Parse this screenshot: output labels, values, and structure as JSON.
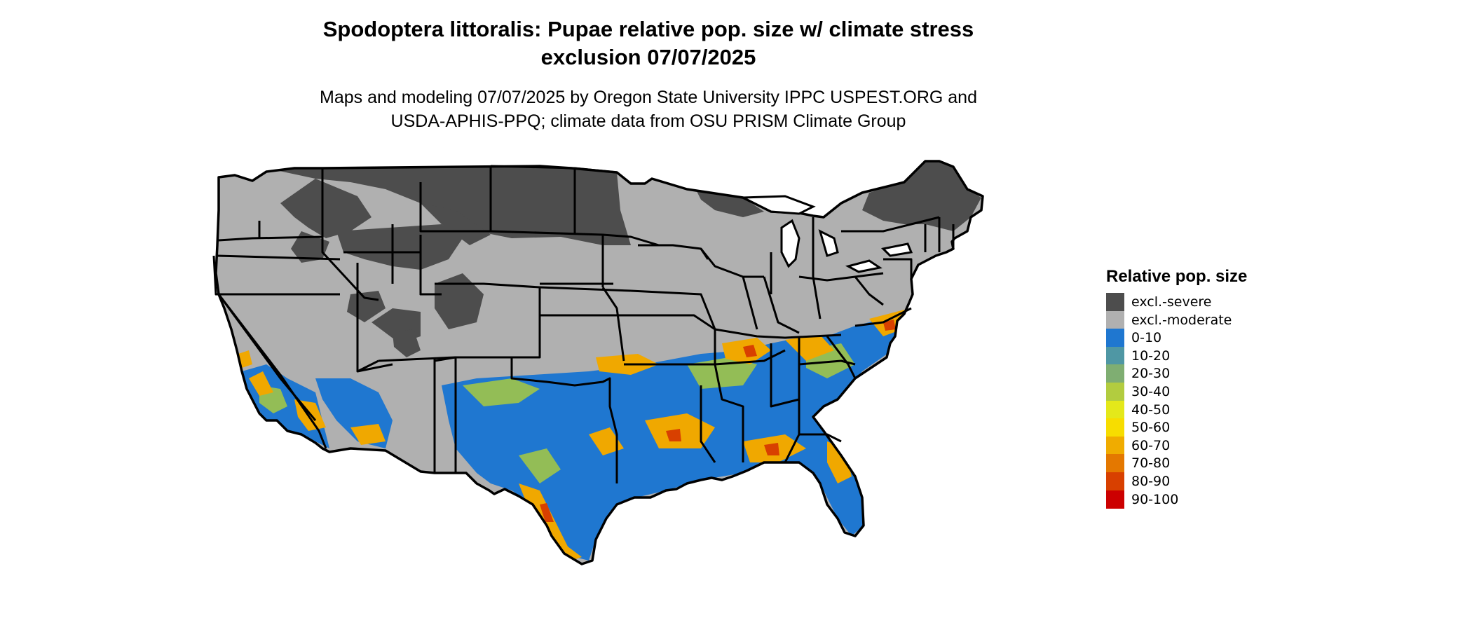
{
  "title": {
    "line1": "Spodoptera littoralis: Pupae relative pop. size w/ climate stress",
    "line2": "exclusion 07/07/2025"
  },
  "subtitle": {
    "line1": "Maps and modeling 07/07/2025 by Oregon State University IPPC USPEST.ORG and",
    "line2": "USDA-APHIS-PPQ; climate data from OSU PRISM Climate Group"
  },
  "legend": {
    "title": "Relative pop. size",
    "items": [
      {
        "label": "excl.-severe",
        "color": "#4d4d4d"
      },
      {
        "label": "excl.-moderate",
        "color": "#b0b0b0"
      },
      {
        "label": "0-10",
        "color": "#1f77d0"
      },
      {
        "label": "10-20",
        "color": "#4f97a4"
      },
      {
        "label": "20-30",
        "color": "#7fae72"
      },
      {
        "label": "30-40",
        "color": "#b2cc3f"
      },
      {
        "label": "40-50",
        "color": "#e4e81a"
      },
      {
        "label": "50-60",
        "color": "#f7dd00"
      },
      {
        "label": "60-70",
        "color": "#f0ac00"
      },
      {
        "label": "70-80",
        "color": "#e47800"
      },
      {
        "label": "80-90",
        "color": "#d84000"
      },
      {
        "label": "90-100",
        "color": "#cc0000"
      }
    ]
  },
  "map": {
    "region": "contiguous-united-states",
    "boundary_color": "#000000",
    "water_color": "#ffffff"
  }
}
